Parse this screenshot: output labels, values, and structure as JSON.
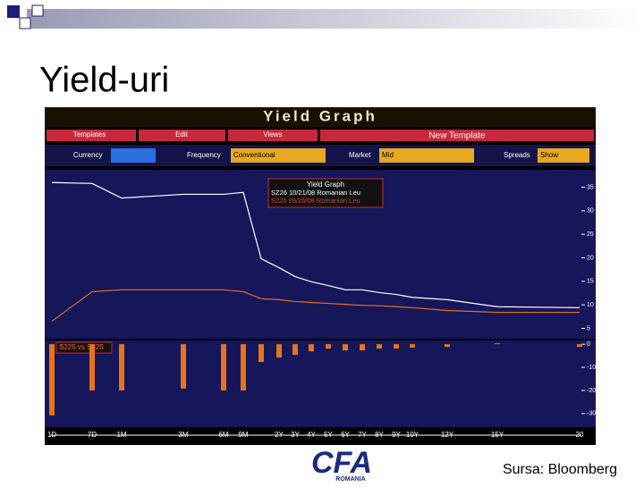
{
  "title": "Yield-uri",
  "source": "Sursa: Bloomberg",
  "logo": {
    "text": "CFA",
    "sub": "ROMANIA"
  },
  "terminal": {
    "header": "Yield Graph",
    "tabs": [
      "Templates",
      "Edit",
      "Views",
      "New Template"
    ],
    "fields": [
      {
        "label": "Currency",
        "value": ""
      },
      {
        "label": "Frequency",
        "value": "Conventional"
      },
      {
        "label": "Market",
        "value": "Mid"
      },
      {
        "label": "Spreads",
        "value": "Show"
      }
    ],
    "legend_title": "Yield Graph",
    "spread_label": "S225 vs S225"
  },
  "chart_data": [
    {
      "type": "line",
      "categories": [
        "1D",
        "7D",
        "1M",
        "3M",
        "6M",
        "9M",
        null,
        "2Y",
        "3Y",
        "4Y",
        "5Y",
        "6Y",
        "7Y",
        "8Y",
        "9Y",
        "10Y",
        "12Y",
        "15Y",
        "20"
      ],
      "series": [
        {
          "name": "SZ26 10/21/08 Romanian Leu",
          "color": "#ffffff",
          "values": [
            36,
            35.8,
            32.7,
            33.5,
            33.5,
            33.9,
            19.8,
            17.9,
            16,
            14.9,
            14.1,
            13.2,
            13.2,
            12.6,
            12.2,
            11.6,
            11.1,
            9.6,
            9.4
          ]
        },
        {
          "name": "S225 09/25/08 Romanian Leu",
          "color": "#e8731a",
          "values": [
            6.5,
            12.8,
            13.2,
            13.2,
            13.2,
            12.8,
            11.3,
            11.1,
            10.7,
            10.5,
            10.3,
            10.1,
            9.9,
            9.8,
            9.6,
            9.4,
            8.8,
            8.4,
            8.4
          ]
        }
      ],
      "ylim": [
        3,
        37
      ],
      "yticks": [
        5,
        10,
        15,
        20,
        25,
        30,
        35
      ]
    },
    {
      "type": "bar",
      "color": "#e8731a",
      "values": [
        -30.8,
        -20,
        -20,
        -19.2,
        -20,
        -20,
        -7.7,
        -5.8,
        -4.6,
        -3.1,
        -1.9,
        -2.7,
        -2.7,
        -1.9,
        -1.9,
        -1.5,
        -1.2,
        0.4,
        -1.2
      ],
      "ylim": [
        -32,
        2
      ],
      "yticks": [
        0,
        -10,
        -20,
        -30
      ]
    }
  ]
}
